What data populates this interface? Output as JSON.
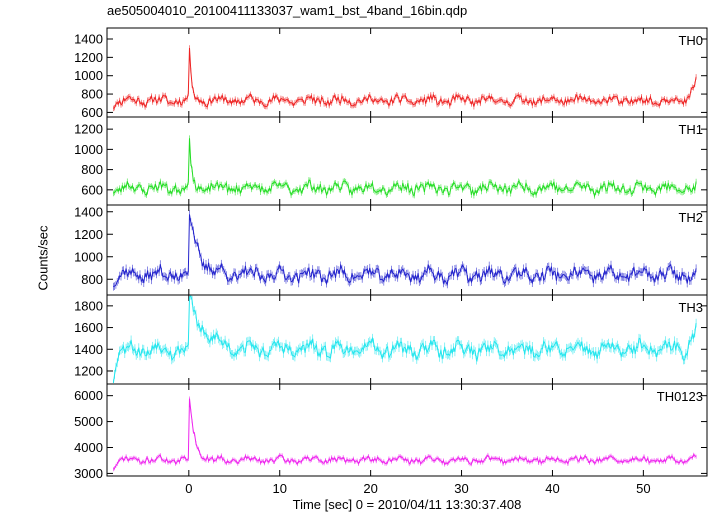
{
  "title": "ae505004010_20100411133037_wam1_bst_4band_16bin.qdp",
  "ylabel": "Counts/sec",
  "xlabel": "Time [sec] 0 = 2010/04/11 13:30:37.408",
  "chart_data": {
    "type": "line",
    "x_range": [
      -9,
      57
    ],
    "x_ticks": [
      0,
      10,
      20,
      30,
      40,
      50
    ],
    "x_ticklabels": [
      "0",
      "10",
      "20",
      "30",
      "40",
      "50"
    ],
    "panels": [
      {
        "name": "TH0",
        "color": "#ee2222",
        "ylim": [
          550,
          1520
        ],
        "y_ticks": [
          600,
          800,
          1000,
          1200,
          1400
        ],
        "y_ticklabels": [
          "600",
          "800",
          "1000",
          "1200",
          "1400"
        ],
        "baseline": 730,
        "noise": 38,
        "wave": 25,
        "err": 30,
        "seed": 11,
        "burst": {
          "peak": 1500,
          "tau": 0.25
        },
        "start": 660,
        "end": 960
      },
      {
        "name": "TH1",
        "color": "#22dd22",
        "ylim": [
          450,
          1320
        ],
        "y_ticks": [
          600,
          800,
          1000,
          1200
        ],
        "y_ticklabels": [
          "600",
          "800",
          "1000",
          "1200"
        ],
        "baseline": 620,
        "noise": 40,
        "wave": 28,
        "err": 28,
        "seed": 23,
        "burst": {
          "peak": 1310,
          "tau": 0.22
        },
        "start": 570,
        "end": 620
      },
      {
        "name": "TH2",
        "color": "#2222cc",
        "ylim": [
          660,
          1460
        ],
        "y_ticks": [
          800,
          1000,
          1200,
          1400
        ],
        "y_ticklabels": [
          "800",
          "1000",
          "1200",
          "1400"
        ],
        "baseline": 840,
        "noise": 45,
        "wave": 32,
        "err": 35,
        "seed": 37,
        "burst": {
          "peak": 1440,
          "tau": 1.0
        },
        "start": 760,
        "end": 850
      },
      {
        "name": "TH3",
        "color": "#22e6ee",
        "ylim": [
          1080,
          1900
        ],
        "y_ticks": [
          1200,
          1400,
          1600,
          1800
        ],
        "y_ticklabels": [
          "1200",
          "1400",
          "1600",
          "1800"
        ],
        "baseline": 1400,
        "noise": 48,
        "wave": 40,
        "err": 40,
        "seed": 53,
        "burst": {
          "peak": 1880,
          "tau": 1.6
        },
        "start": 1130,
        "end": 1620
      },
      {
        "name": "TH0123",
        "color": "#ee22ee",
        "ylim": [
          2900,
          6450
        ],
        "y_ticks": [
          3000,
          4000,
          5000,
          6000
        ],
        "y_ticklabels": [
          "3000",
          "4000",
          "5000",
          "6000"
        ],
        "baseline": 3520,
        "noise": 90,
        "wave": 70,
        "err": 80,
        "seed": 71,
        "burst": {
          "peak": 6300,
          "tau": 0.55
        },
        "start": 3200,
        "end": 3650
      }
    ]
  }
}
